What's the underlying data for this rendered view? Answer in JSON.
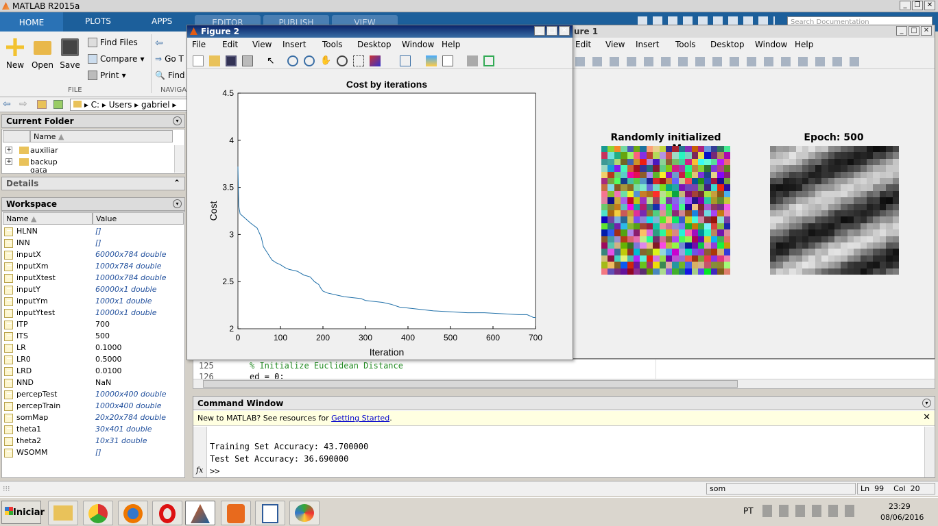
{
  "app": {
    "title": "MATLAB R2015a"
  },
  "tabs": {
    "home": "HOME",
    "plots": "PLOTS",
    "apps": "APPS",
    "editor": "EDITOR",
    "publish": "PUBLISH",
    "view": "VIEW"
  },
  "search": {
    "placeholder": "Search Documentation"
  },
  "ribbon": {
    "new": "New",
    "open": "Open",
    "save": "Save",
    "find_files": "Find Files",
    "compare": "Compare",
    "print": "Print",
    "go_to": "Go T",
    "find": "Find",
    "group_file": "FILE",
    "group_navigate": "NAVIGA"
  },
  "address": {
    "drive": "C:",
    "users": "Users",
    "user": "gabriel"
  },
  "current_folder": {
    "title": "Current Folder",
    "name_col": "Name",
    "items": [
      "auxiliar",
      "backup",
      "data"
    ]
  },
  "details": {
    "title": "Details"
  },
  "workspace": {
    "title": "Workspace",
    "name_col": "Name",
    "value_col": "Value",
    "rows": [
      {
        "name": "HLNN",
        "value": "[]",
        "blue": true
      },
      {
        "name": "INN",
        "value": "[]",
        "blue": true
      },
      {
        "name": "inputX",
        "value": "60000x784 double",
        "blue": true
      },
      {
        "name": "inputXm",
        "value": "1000x784 double",
        "blue": true
      },
      {
        "name": "inputXtest",
        "value": "10000x784 double",
        "blue": true
      },
      {
        "name": "inputY",
        "value": "60000x1 double",
        "blue": true
      },
      {
        "name": "inputYm",
        "value": "1000x1 double",
        "blue": true
      },
      {
        "name": "inputYtest",
        "value": "10000x1 double",
        "blue": true
      },
      {
        "name": "ITP",
        "value": "700",
        "blue": false
      },
      {
        "name": "ITS",
        "value": "500",
        "blue": false
      },
      {
        "name": "LR",
        "value": "0.1000",
        "blue": false
      },
      {
        "name": "LR0",
        "value": "0.5000",
        "blue": false
      },
      {
        "name": "LRD",
        "value": "0.0100",
        "blue": false
      },
      {
        "name": "NND",
        "value": "NaN",
        "blue": false
      },
      {
        "name": "percepTest",
        "value": "10000x400 double",
        "blue": true
      },
      {
        "name": "percepTrain",
        "value": "1000x400 double",
        "blue": true
      },
      {
        "name": "somMap",
        "value": "20x20x784 double",
        "blue": true
      },
      {
        "name": "theta1",
        "value": "30x401 double",
        "blue": true
      },
      {
        "name": "theta2",
        "value": "10x31 double",
        "blue": true
      },
      {
        "name": "WSOMM",
        "value": "[]",
        "blue": true
      }
    ]
  },
  "figure2": {
    "title": "Figure 2",
    "menus": [
      "File",
      "Edit",
      "View",
      "Insert",
      "Tools",
      "Desktop",
      "Window",
      "Help"
    ]
  },
  "figure1": {
    "title": "ure 1",
    "menus": [
      "Edit",
      "View",
      "Insert",
      "Tools",
      "Desktop",
      "Window",
      "Help"
    ],
    "left_title": "Randomly initialized somM",
    "right_title": "Epoch: 500"
  },
  "chart_data": {
    "type": "line",
    "title": "Cost by iterations",
    "xlabel": "Iteration",
    "ylabel": "Cost",
    "xlim": [
      0,
      700
    ],
    "ylim": [
      2,
      4.5
    ],
    "xticks": [
      "0",
      "100",
      "200",
      "300",
      "400",
      "500",
      "600",
      "700"
    ],
    "yticks": [
      "2",
      "2.5",
      "3",
      "3.5",
      "4",
      "4.5"
    ],
    "series": [
      {
        "name": "cost",
        "color": "#1f6fa8",
        "x": [
          0,
          1,
          2,
          3,
          4,
          5,
          10,
          20,
          30,
          45,
          55,
          60,
          70,
          80,
          90,
          100,
          110,
          120,
          140,
          155,
          170,
          180,
          190,
          195,
          200,
          210,
          230,
          250,
          270,
          290,
          300,
          320,
          340,
          360,
          380,
          400,
          420,
          440,
          460,
          500,
          540,
          580,
          620,
          660,
          680,
          690,
          695,
          700
        ],
        "y": [
          3.72,
          3.5,
          3.3,
          3.27,
          3.25,
          3.22,
          3.2,
          3.16,
          3.12,
          3.07,
          2.97,
          2.87,
          2.8,
          2.73,
          2.7,
          2.68,
          2.65,
          2.63,
          2.61,
          2.57,
          2.55,
          2.5,
          2.47,
          2.43,
          2.4,
          2.38,
          2.36,
          2.34,
          2.33,
          2.32,
          2.3,
          2.29,
          2.28,
          2.26,
          2.23,
          2.22,
          2.21,
          2.2,
          2.19,
          2.18,
          2.17,
          2.17,
          2.16,
          2.15,
          2.15,
          2.13,
          2.12,
          2.12
        ]
      }
    ]
  },
  "editor": {
    "line125": "125",
    "code125": "% Initialize Euclidean Distance",
    "line126": "126",
    "code126": "ed = 0;"
  },
  "command": {
    "title": "Command Window",
    "notice": "New to MATLAB? See resources for ",
    "link": "Getting Started",
    "notice_end": ".",
    "out1": "Training Set Accuracy: 43.700000",
    "out2": "Test Set Accuracy: 36.690000",
    "prompt": ">>",
    "fx": "fx"
  },
  "status": {
    "file": "som",
    "ln_label": "Ln",
    "ln": "99",
    "col_label": "Col",
    "col": "20"
  },
  "taskbar": {
    "start": "Iniciar",
    "lang": "PT",
    "time": "23:29",
    "date": "08/06/2016"
  },
  "colors": {
    "tab_bar": "#1c5f9b",
    "line": "#1f6fa8"
  }
}
